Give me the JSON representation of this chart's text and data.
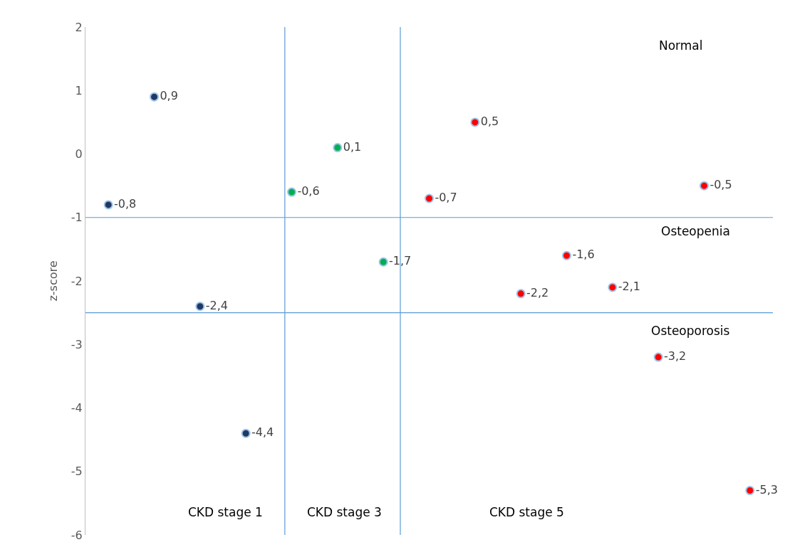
{
  "chart_data": {
    "type": "scatter",
    "ylabel": "z-score",
    "categories": [
      null,
      null,
      null,
      null,
      null,
      null,
      null,
      null,
      null,
      null,
      null,
      null,
      null,
      null,
      null
    ],
    "ylim": [
      -6,
      2
    ],
    "yticks": [
      -6,
      -5,
      -4,
      -3,
      -2,
      -1,
      0,
      1,
      2
    ],
    "tick_labels": "y",
    "marker": "circle",
    "series": [
      {
        "color": "#1f3864",
        "values": [
          -0.8,
          0.9,
          -2.4,
          -4.4,
          null,
          null,
          null,
          null,
          null,
          null,
          null,
          null,
          null,
          null,
          null
        ],
        "value_labels": [
          "-0,8",
          "0,9",
          "-2,4",
          "-4,4",
          null,
          null,
          null,
          null,
          null,
          null,
          null,
          null,
          null,
          null,
          null
        ]
      },
      {
        "color": "#00b050",
        "values": [
          null,
          null,
          null,
          null,
          -0.6,
          0.1,
          -1.7,
          null,
          null,
          null,
          null,
          null,
          null,
          null,
          null
        ],
        "value_labels": [
          null,
          null,
          null,
          null,
          "-0,6",
          "0,1",
          "-1,7",
          null,
          null,
          null,
          null,
          null,
          null,
          null,
          null
        ]
      },
      {
        "color": "#ff0000",
        "values": [
          null,
          null,
          null,
          null,
          null,
          null,
          null,
          -0.7,
          0.5,
          -2.2,
          -1.6,
          -2.1,
          -3.2,
          -0.5,
          -5.3
        ],
        "value_labels": [
          null,
          null,
          null,
          null,
          null,
          null,
          null,
          "-0,7",
          "0,5",
          "-2,2",
          "-1,6",
          "-2,1",
          "-3,2",
          "-0,5",
          "-5,3"
        ]
      }
    ],
    "ref_lines": [
      {
        "axis": "y",
        "value": -1,
        "color": "#5b9bd5"
      },
      {
        "axis": "y",
        "value": -2.5,
        "color": "#5b9bd5"
      }
    ],
    "annotations": [
      "Normal",
      "Osteopenia",
      "Osteoporosis",
      "CKD stage 1",
      "CKD stage 3",
      "CKD stage 5"
    ]
  }
}
